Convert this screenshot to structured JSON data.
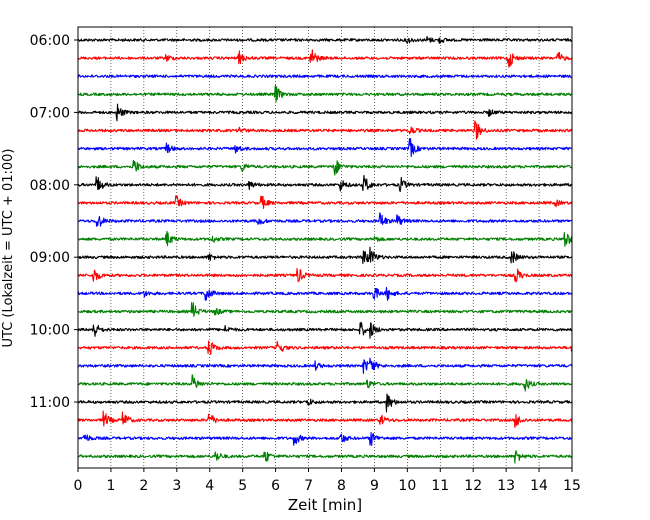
{
  "chart_data": {
    "type": "line",
    "title": "",
    "xlabel": "Zeit  [min]",
    "ylabel": "UTC (Lokalzeit = UTC + 01:00)",
    "xlim": [
      0,
      15
    ],
    "x_ticks": [
      "0",
      "1",
      "2",
      "3",
      "4",
      "5",
      "6",
      "7",
      "8",
      "9",
      "10",
      "11",
      "12",
      "13",
      "14",
      "15"
    ],
    "y_ticks": [
      "06:00",
      "07:00",
      "08:00",
      "09:00",
      "10:00",
      "11:00"
    ],
    "grid": "vertical dotted lines at each minute",
    "trace_interval_min": 15,
    "first_trace_start": "06:00",
    "color_cycle": [
      "#000000",
      "#ff0000",
      "#0000ff",
      "#008000"
    ],
    "traces": [
      {
        "start": "06:00",
        "events": [
          {
            "t": 10.0,
            "a": 3
          },
          {
            "t": 10.6,
            "a": 3
          },
          {
            "t": 11.0,
            "a": 2.5
          }
        ]
      },
      {
        "start": "06:15",
        "events": [
          {
            "t": 2.7,
            "a": 3
          },
          {
            "t": 4.9,
            "a": 6
          },
          {
            "t": 7.1,
            "a": 10
          },
          {
            "t": 13.1,
            "a": 9
          },
          {
            "t": 14.6,
            "a": 5
          }
        ]
      },
      {
        "start": "06:30",
        "events": []
      },
      {
        "start": "06:45",
        "events": [
          {
            "t": 6.0,
            "a": 9
          }
        ]
      },
      {
        "start": "07:00",
        "events": [
          {
            "t": 1.2,
            "a": 8
          },
          {
            "t": 12.5,
            "a": 3
          }
        ]
      },
      {
        "start": "07:15",
        "events": [
          {
            "t": 4.9,
            "a": 3
          },
          {
            "t": 10.1,
            "a": 4
          },
          {
            "t": 12.1,
            "a": 9
          }
        ]
      },
      {
        "start": "07:30",
        "events": [
          {
            "t": 2.7,
            "a": 5
          },
          {
            "t": 4.8,
            "a": 4
          },
          {
            "t": 10.1,
            "a": 9
          }
        ]
      },
      {
        "start": "07:45",
        "events": [
          {
            "t": 1.7,
            "a": 8
          },
          {
            "t": 5.0,
            "a": 4
          },
          {
            "t": 7.8,
            "a": 9
          }
        ]
      },
      {
        "start": "08:00",
        "events": [
          {
            "t": 0.6,
            "a": 8
          },
          {
            "t": 5.2,
            "a": 4
          },
          {
            "t": 8.0,
            "a": 5
          },
          {
            "t": 8.7,
            "a": 9
          },
          {
            "t": 9.8,
            "a": 7
          }
        ]
      },
      {
        "start": "08:15",
        "events": [
          {
            "t": 3.0,
            "a": 6
          },
          {
            "t": 5.6,
            "a": 6
          },
          {
            "t": 14.5,
            "a": 3
          }
        ]
      },
      {
        "start": "08:30",
        "events": [
          {
            "t": 0.6,
            "a": 8
          },
          {
            "t": 5.5,
            "a": 4
          },
          {
            "t": 9.2,
            "a": 8
          },
          {
            "t": 9.7,
            "a": 6
          }
        ]
      },
      {
        "start": "08:45",
        "events": [
          {
            "t": 2.7,
            "a": 8
          },
          {
            "t": 4.1,
            "a": 3
          },
          {
            "t": 9.0,
            "a": 3
          },
          {
            "t": 14.8,
            "a": 9
          }
        ]
      },
      {
        "start": "09:00",
        "events": [
          {
            "t": 4.0,
            "a": 3
          },
          {
            "t": 8.7,
            "a": 9
          },
          {
            "t": 8.9,
            "a": 7
          },
          {
            "t": 13.2,
            "a": 6
          }
        ]
      },
      {
        "start": "09:15",
        "events": [
          {
            "t": 0.5,
            "a": 7
          },
          {
            "t": 6.7,
            "a": 7
          },
          {
            "t": 13.3,
            "a": 8
          }
        ]
      },
      {
        "start": "09:30",
        "events": [
          {
            "t": 2.0,
            "a": 3
          },
          {
            "t": 3.9,
            "a": 8
          },
          {
            "t": 9.0,
            "a": 7
          },
          {
            "t": 9.4,
            "a": 6
          }
        ]
      },
      {
        "start": "09:45",
        "events": [
          {
            "t": 3.5,
            "a": 8
          },
          {
            "t": 4.2,
            "a": 3
          }
        ]
      },
      {
        "start": "10:00",
        "events": [
          {
            "t": 0.5,
            "a": 8
          },
          {
            "t": 4.5,
            "a": 3
          },
          {
            "t": 8.6,
            "a": 7
          },
          {
            "t": 8.9,
            "a": 7
          }
        ]
      },
      {
        "start": "10:15",
        "events": [
          {
            "t": 4.0,
            "a": 8
          },
          {
            "t": 6.1,
            "a": 6
          },
          {
            "t": 15.0,
            "a": 5
          }
        ]
      },
      {
        "start": "10:30",
        "events": [
          {
            "t": 7.2,
            "a": 4
          },
          {
            "t": 8.7,
            "a": 7
          },
          {
            "t": 8.9,
            "a": 7
          }
        ]
      },
      {
        "start": "10:45",
        "events": [
          {
            "t": 3.5,
            "a": 8
          },
          {
            "t": 8.8,
            "a": 4
          },
          {
            "t": 13.6,
            "a": 6
          }
        ]
      },
      {
        "start": "11:00",
        "events": [
          {
            "t": 9.4,
            "a": 9
          },
          {
            "t": 7.0,
            "a": 3
          }
        ]
      },
      {
        "start": "11:15",
        "events": [
          {
            "t": 0.8,
            "a": 8
          },
          {
            "t": 1.4,
            "a": 7
          },
          {
            "t": 4.0,
            "a": 7
          },
          {
            "t": 9.2,
            "a": 5
          },
          {
            "t": 13.3,
            "a": 7
          }
        ]
      },
      {
        "start": "11:30",
        "events": [
          {
            "t": 0.2,
            "a": 5
          },
          {
            "t": 6.6,
            "a": 6
          },
          {
            "t": 8.0,
            "a": 5
          },
          {
            "t": 8.9,
            "a": 7
          }
        ]
      },
      {
        "start": "11:45",
        "events": [
          {
            "t": 4.2,
            "a": 5
          },
          {
            "t": 5.7,
            "a": 6
          },
          {
            "t": 13.3,
            "a": 7
          }
        ]
      }
    ]
  }
}
